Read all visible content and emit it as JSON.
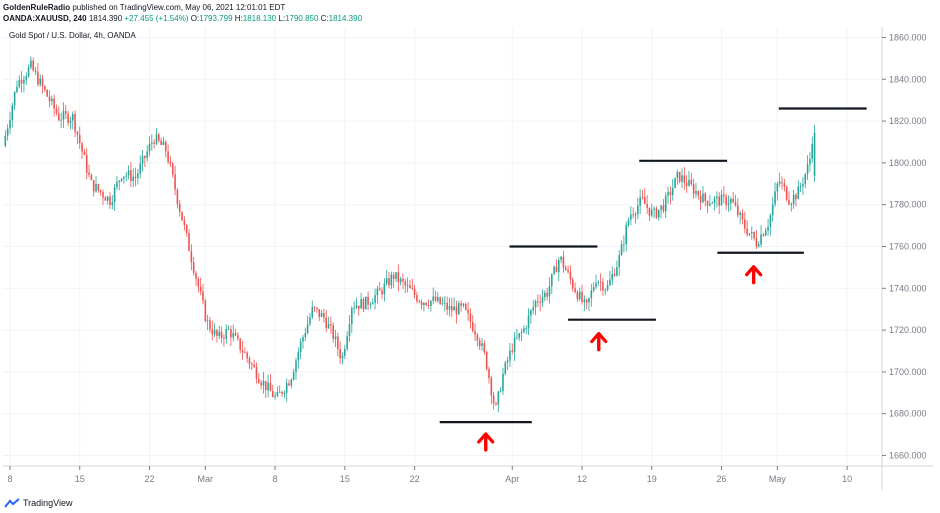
{
  "header": {
    "author": "GoldenRuleRadio",
    "published": "published on TradingView.com, May 06, 2021 12:01:01 EDT",
    "symbol": "OANDA:XAUUSD, 240",
    "last": "1814.390",
    "change": "+27.455 (+1.54%)",
    "ohlc": [
      {
        "k": "O:",
        "v": "1793.799"
      },
      {
        "k": "H:",
        "v": "1818.130"
      },
      {
        "k": "L:",
        "v": "1790.850"
      },
      {
        "k": "C:",
        "v": "1814.390"
      }
    ]
  },
  "footer": {
    "brand": "TradingView"
  },
  "colors": {
    "up": "#26a69a",
    "down": "#ef5350",
    "up_wick": "#26a69a",
    "down_wick": "#ef5350",
    "grid": "#f0f3fa",
    "axis": "#787b86",
    "lines": "#131722",
    "arrow": "#ff0000"
  },
  "chart_data": {
    "type": "candlestick",
    "title": "Gold Spot / U.S. Dollar, 4h, OANDA",
    "y_ticks": [
      "1860.000",
      "1840.000",
      "1820.000",
      "1800.000",
      "1780.000",
      "1760.000",
      "1740.000",
      "1720.000",
      "1700.000",
      "1680.000",
      "1660.000"
    ],
    "ylim": [
      1655,
      1865
    ],
    "x_ticks": [
      "8",
      "15",
      "22",
      "Mar",
      "8",
      "15",
      "22",
      "Apr",
      "12",
      "19",
      "26",
      "May",
      "10"
    ],
    "x_tick_pos": [
      0.5,
      5.5,
      10.5,
      14.5,
      19.5,
      24.5,
      29.5,
      36.5,
      41.5,
      46.5,
      51.5,
      55.5,
      60.5
    ],
    "x_domain": [
      0,
      63
    ],
    "candles_per_day": 6,
    "wave_points": [
      [
        0,
        1808
      ],
      [
        1,
        1838
      ],
      [
        2,
        1846
      ],
      [
        3,
        1834
      ],
      [
        4,
        1822
      ],
      [
        5,
        1822
      ],
      [
        6.3,
        1790
      ],
      [
        7.7,
        1782
      ],
      [
        8.5,
        1795
      ],
      [
        9.5,
        1793
      ],
      [
        10.8,
        1812
      ],
      [
        11.7,
        1806
      ],
      [
        12.6,
        1780
      ],
      [
        13.6,
        1752
      ],
      [
        14.6,
        1724
      ],
      [
        15.4,
        1716
      ],
      [
        16.2,
        1720
      ],
      [
        17.2,
        1710
      ],
      [
        18.5,
        1696
      ],
      [
        19.6,
        1687
      ],
      [
        20.6,
        1697
      ],
      [
        21.4,
        1715
      ],
      [
        22.2,
        1730
      ],
      [
        23.0,
        1726
      ],
      [
        23.7,
        1717
      ],
      [
        24.3,
        1706
      ],
      [
        25.0,
        1732
      ],
      [
        26.0,
        1733
      ],
      [
        27.0,
        1738
      ],
      [
        28.0,
        1746
      ],
      [
        29.0,
        1740
      ],
      [
        30.0,
        1734
      ],
      [
        31.0,
        1734
      ],
      [
        32.0,
        1730
      ],
      [
        33.0,
        1730
      ],
      [
        34.0,
        1718
      ],
      [
        34.6,
        1706
      ],
      [
        35.3,
        1681
      ],
      [
        35.8,
        1698
      ],
      [
        36.5,
        1712
      ],
      [
        37.3,
        1720
      ],
      [
        38.2,
        1734
      ],
      [
        39.0,
        1738
      ],
      [
        39.9,
        1755
      ],
      [
        40.8,
        1742
      ],
      [
        41.8,
        1730
      ],
      [
        42.5,
        1745
      ],
      [
        43.3,
        1740
      ],
      [
        44.2,
        1755
      ],
      [
        44.9,
        1775
      ],
      [
        45.8,
        1782
      ],
      [
        46.6,
        1775
      ],
      [
        47.4,
        1780
      ],
      [
        48.4,
        1794
      ],
      [
        49.4,
        1788
      ],
      [
        50.3,
        1782
      ],
      [
        51.3,
        1782
      ],
      [
        52.2,
        1782
      ],
      [
        53.1,
        1770
      ],
      [
        54.0,
        1762
      ],
      [
        54.9,
        1772
      ],
      [
        55.6,
        1792
      ],
      [
        56.4,
        1782
      ],
      [
        57.0,
        1786
      ],
      [
        57.8,
        1800
      ],
      [
        58.0,
        1812
      ]
    ],
    "annotations": {
      "resistance_lines": [
        {
          "y": 1760,
          "x0": 36.3,
          "x1": 42.6
        },
        {
          "y": 1801,
          "x0": 45.6,
          "x1": 51.9
        },
        {
          "y": 1826,
          "x0": 55.6,
          "x1": 61.9
        }
      ],
      "support_lines": [
        {
          "y": 1676,
          "x0": 31.3,
          "x1": 37.9
        },
        {
          "y": 1725,
          "x0": 40.5,
          "x1": 46.8
        },
        {
          "y": 1757,
          "x0": 51.2,
          "x1": 57.4
        }
      ],
      "arrows": [
        {
          "x": 34.6,
          "y": 1667
        },
        {
          "x": 42.7,
          "y": 1715
        },
        {
          "x": 53.8,
          "y": 1747
        }
      ]
    }
  }
}
